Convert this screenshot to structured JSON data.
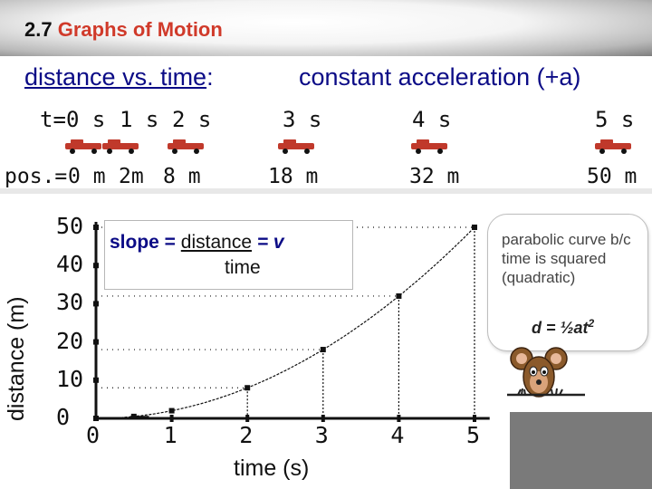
{
  "header": {
    "section_number": "2.7",
    "section_title": "Graphs of Motion",
    "subtitle_left": "distance vs. time",
    "subtitle_left_colon": ":",
    "subtitle_right": "constant acceleration (+a)"
  },
  "strip": {
    "time_prefix": "t=",
    "time_labels": [
      "0 s",
      "1 s",
      "2 s",
      "3 s",
      "4 s",
      "5 s"
    ],
    "pos_prefix": "pos.=",
    "position_labels": [
      "0 m",
      "2m",
      "8 m",
      "18 m",
      "32 m",
      "50 m"
    ]
  },
  "slope_box": {
    "prefix": "slope = ",
    "numerator": "distance",
    "equals_v": " = v",
    "denominator": "time"
  },
  "callout": {
    "text": "parabolic curve b/c time is squared (quadratic)",
    "formula": "d = ½at",
    "formula_exponent": "2"
  },
  "colors": {
    "title_red": "#d03a2a",
    "subtitle_blue": "#0b0b86",
    "car_red": "#c0392b",
    "curve_black": "#111111"
  },
  "icons": [
    "car-icon",
    "mouse-mascot-icon"
  ],
  "chart_data": {
    "type": "line",
    "title": "",
    "xlabel": "time (s)",
    "ylabel": "distance (m)",
    "x": [
      0,
      0.5,
      1,
      2,
      3,
      4,
      5
    ],
    "series": [
      {
        "values": [
          0,
          0.5,
          2,
          8,
          18,
          32,
          50
        ]
      }
    ],
    "marked_points": [
      [
        0.5,
        0.5
      ],
      [
        1,
        2
      ],
      [
        2,
        8
      ],
      [
        3,
        18
      ],
      [
        4,
        32
      ],
      [
        5,
        50
      ]
    ],
    "x_ticks": [
      0,
      1,
      2,
      3,
      4,
      5
    ],
    "y_ticks": [
      0,
      10,
      20,
      30,
      40,
      50
    ],
    "xlim": [
      0,
      5.2
    ],
    "ylim": [
      0,
      50
    ],
    "grid": false
  }
}
